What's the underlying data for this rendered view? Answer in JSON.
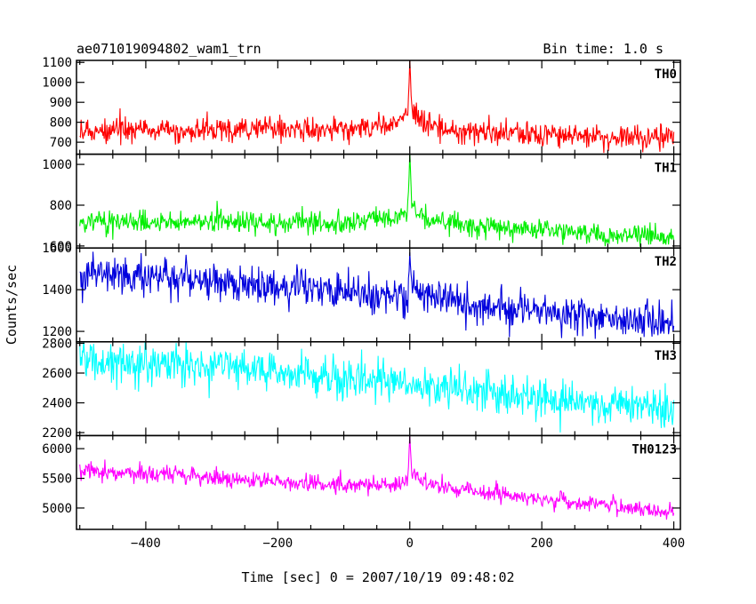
{
  "header": {
    "title": "ae071019094802_wam1_trn",
    "bin_time": "Bin time: 1.0 s"
  },
  "chart_data": {
    "type": "line",
    "title": "ae071019094802_wam1_trn",
    "subtitle": "Bin time: 1.0 s",
    "xlabel": "Time [sec] 0 = 2007/10/19 09:48:02",
    "ylabel": "Counts/sec",
    "xlim": [
      -505,
      410
    ],
    "xticks": [
      -400,
      -200,
      0,
      200,
      400
    ],
    "grid": false,
    "legend": "none",
    "noise_seed": 7,
    "panels": [
      {
        "name": "TH0",
        "color": "#ff0000",
        "ylim": [
          640,
          1110
        ],
        "yticks": [
          700,
          800,
          900,
          1000,
          1100
        ],
        "trend": [
          [
            -500,
            760
          ],
          [
            -100,
            760
          ],
          [
            -20,
            790
          ],
          [
            -3,
            830
          ],
          [
            0,
            1100
          ],
          [
            3,
            870
          ],
          [
            20,
            800
          ],
          [
            60,
            760
          ],
          [
            400,
            715
          ]
        ],
        "noise_sd": 30
      },
      {
        "name": "TH1",
        "color": "#00ee00",
        "ylim": [
          590,
          1050
        ],
        "yticks": [
          600,
          800,
          1000
        ],
        "trend": [
          [
            -500,
            720
          ],
          [
            -100,
            715
          ],
          [
            -20,
            740
          ],
          [
            -3,
            770
          ],
          [
            0,
            1040
          ],
          [
            3,
            800
          ],
          [
            20,
            740
          ],
          [
            80,
            700
          ],
          [
            400,
            640
          ]
        ],
        "noise_sd": 28
      },
      {
        "name": "TH2",
        "color": "#0000dd",
        "ylim": [
          1150,
          1600
        ],
        "yticks": [
          1200,
          1400,
          1600
        ],
        "trend": [
          [
            -500,
            1480
          ],
          [
            -300,
            1440
          ],
          [
            -100,
            1390
          ],
          [
            -3,
            1360
          ],
          [
            0,
            1600
          ],
          [
            3,
            1400
          ],
          [
            90,
            1330
          ],
          [
            400,
            1230
          ]
        ],
        "noise_sd": 42
      },
      {
        "name": "TH3",
        "color": "#00ffff",
        "ylim": [
          2180,
          2810
        ],
        "yticks": [
          2200,
          2400,
          2600,
          2800
        ],
        "trend": [
          [
            -500,
            2700
          ],
          [
            -300,
            2640
          ],
          [
            -100,
            2560
          ],
          [
            0,
            2520
          ],
          [
            200,
            2440
          ],
          [
            400,
            2340
          ]
        ],
        "noise_sd": 65
      },
      {
        "name": "TH0123",
        "color": "#ff00ff",
        "ylim": [
          4640,
          6220
        ],
        "yticks": [
          5000,
          5500,
          6000
        ],
        "trend": [
          [
            -500,
            5620
          ],
          [
            -300,
            5510
          ],
          [
            -100,
            5380
          ],
          [
            -20,
            5400
          ],
          [
            -3,
            5480
          ],
          [
            0,
            6200
          ],
          [
            3,
            5600
          ],
          [
            30,
            5380
          ],
          [
            200,
            5150
          ],
          [
            400,
            4920
          ]
        ],
        "noise_sd": 75
      }
    ]
  }
}
